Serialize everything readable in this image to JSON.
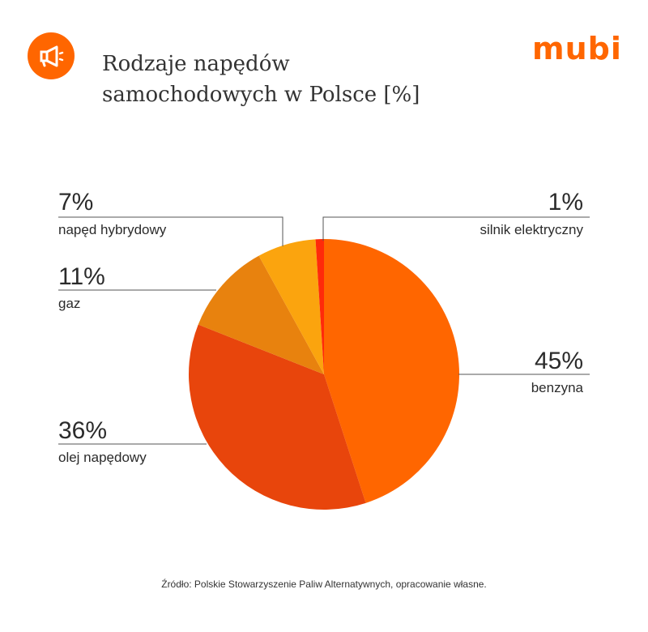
{
  "header": {
    "icon": "megaphone-icon",
    "title_line1": "Rodzaje napędów",
    "title_line2": "samochodowych w Polsce [%]",
    "logo": "mubi",
    "accent": "#ff6600"
  },
  "chart_data": {
    "type": "pie",
    "title": "Rodzaje napędów samochodowych w Polsce [%]",
    "slices": [
      {
        "label": "benzyna",
        "value": 45,
        "value_label": "45%",
        "color": "#ff6600"
      },
      {
        "label": "olej napędowy",
        "value": 36,
        "value_label": "36%",
        "color": "#e8450c"
      },
      {
        "label": "gaz",
        "value": 11,
        "value_label": "11%",
        "color": "#e8820e"
      },
      {
        "label": "napęd hybrydowy",
        "value": 7,
        "value_label": "7%",
        "color": "#fba40e"
      },
      {
        "label": "silnik elektryczny",
        "value": 1,
        "value_label": "1%",
        "color": "#ff2a0a"
      }
    ]
  },
  "footer": {
    "source": "Źródło: Polskie Stowarzyszenie Paliw Alternatywnych, opracowanie własne."
  }
}
